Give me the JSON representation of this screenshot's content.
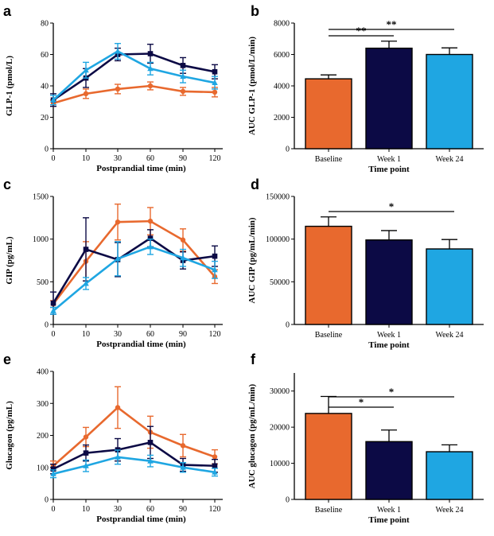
{
  "colors": {
    "baseline": "#E8692E",
    "week1": "#0C0A45",
    "week24": "#1FA6E2"
  },
  "chart_data": [
    {
      "panel": "a",
      "type": "line",
      "x": [
        "0",
        "10",
        "30",
        "60",
        "90",
        "120"
      ],
      "xlabel": "Postprandial time (min)",
      "ylabel": "GLP-1 (pmol/L)",
      "ylim": [
        0,
        80
      ],
      "yticks": [
        0,
        20,
        40,
        60,
        80
      ],
      "series": [
        {
          "key": "baseline",
          "values": [
            29,
            35,
            38,
            40,
            36.5,
            36
          ],
          "errors": [
            2,
            3,
            3,
            2.5,
            2.5,
            3
          ]
        },
        {
          "key": "week1",
          "values": [
            31,
            45,
            60,
            60.5,
            53,
            49
          ],
          "errors": [
            4,
            6,
            4,
            6,
            5,
            4.5
          ]
        },
        {
          "key": "week24",
          "values": [
            31,
            50,
            62,
            51,
            46,
            42
          ],
          "errors": [
            3,
            5,
            5,
            4,
            4,
            4
          ]
        }
      ]
    },
    {
      "panel": "b",
      "type": "bar",
      "categories": [
        "Baseline",
        "Week 1",
        "Week 24"
      ],
      "values": [
        4450,
        6400,
        6000
      ],
      "errors": [
        250,
        450,
        420
      ],
      "xlabel": "Time point",
      "ylabel": "AUC GLP-1 (pmol/L/min)",
      "ylim": [
        0,
        8000
      ],
      "yticks": [
        0,
        2000,
        4000,
        6000,
        8000
      ],
      "significance": [
        {
          "from": 0,
          "to": 1,
          "label": "**"
        },
        {
          "from": 0,
          "to": 2,
          "label": "**"
        }
      ]
    },
    {
      "panel": "c",
      "type": "line",
      "x": [
        "0",
        "10",
        "30",
        "60",
        "90",
        "120"
      ],
      "xlabel": "Postprandial time (min)",
      "ylabel": "GIP (pg/mL)",
      "ylim": [
        0,
        1500
      ],
      "yticks": [
        0,
        500,
        1000,
        1500
      ],
      "series": [
        {
          "key": "baseline",
          "values": [
            240,
            740,
            1200,
            1210,
            990,
            560
          ],
          "errors": [
            40,
            230,
            210,
            160,
            130,
            80
          ]
        },
        {
          "key": "week1",
          "values": [
            250,
            880,
            760,
            1010,
            750,
            800
          ],
          "errors": [
            130,
            370,
            200,
            100,
            100,
            120
          ]
        },
        {
          "key": "week24",
          "values": [
            160,
            480,
            770,
            910,
            780,
            640
          ],
          "errors": [
            40,
            70,
            200,
            90,
            100,
            100
          ]
        }
      ]
    },
    {
      "panel": "d",
      "type": "bar",
      "categories": [
        "Baseline",
        "Week 1",
        "Week 24"
      ],
      "values": [
        115000,
        99000,
        88500
      ],
      "errors": [
        11000,
        11000,
        11000
      ],
      "xlabel": "Time point",
      "ylabel": "AUC GIP (pg/mL/min)",
      "ylim": [
        0,
        150000
      ],
      "yticks": [
        0,
        50000,
        100000,
        150000
      ],
      "significance": [
        {
          "from": 0,
          "to": 2,
          "label": "*"
        }
      ]
    },
    {
      "panel": "e",
      "type": "line",
      "x": [
        "0",
        "10",
        "30",
        "60",
        "90",
        "120"
      ],
      "xlabel": "Postprandial time (min)",
      "ylabel": "Glucagon (pg/mL)",
      "ylim": [
        0,
        400
      ],
      "yticks": [
        0,
        100,
        200,
        300,
        400
      ],
      "series": [
        {
          "key": "baseline",
          "values": [
            105,
            195,
            287,
            210,
            168,
            133
          ],
          "errors": [
            15,
            30,
            65,
            50,
            35,
            22
          ]
        },
        {
          "key": "week1",
          "values": [
            95,
            145,
            155,
            178,
            108,
            105
          ],
          "errors": [
            15,
            25,
            35,
            50,
            20,
            20
          ]
        },
        {
          "key": "week24",
          "values": [
            80,
            105,
            132,
            120,
            100,
            85
          ],
          "errors": [
            12,
            18,
            22,
            18,
            15,
            12
          ]
        }
      ]
    },
    {
      "panel": "f",
      "type": "bar",
      "categories": [
        "Baseline",
        "Week 1",
        "Week 24"
      ],
      "values": [
        23800,
        16000,
        13200
      ],
      "errors": [
        4700,
        3200,
        1900
      ],
      "xlabel": "Time point",
      "ylabel": "AUC glucagon (pg/mL/min)",
      "ylim": [
        0,
        35000
      ],
      "yticks": [
        0,
        10000,
        20000,
        30000
      ],
      "significance": [
        {
          "from": 0,
          "to": 1,
          "label": "*"
        },
        {
          "from": 0,
          "to": 2,
          "label": "*"
        }
      ]
    }
  ]
}
